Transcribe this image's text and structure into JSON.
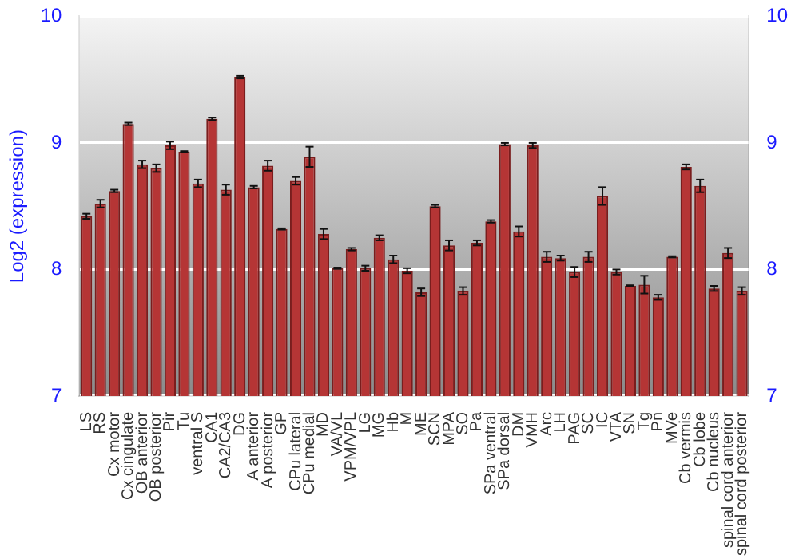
{
  "chart_data": {
    "type": "bar",
    "ylabel": "Log2 (expression)",
    "categories": [
      "LS",
      "RS",
      "Cx motor",
      "Cx cingulate",
      "OB anterior",
      "OB posterior",
      "Pir",
      "Tu",
      "ventral S",
      "CA1",
      "CA2/CA3",
      "DG",
      "A anterior",
      "A posterior",
      "GP",
      "CPu lateral",
      "CPu medial",
      "MD",
      "VA/VL",
      "VPM/VPL",
      "LG",
      "MG",
      "Hb",
      "M",
      "ME",
      "SCN",
      "MPA",
      "SO",
      "Pa",
      "SPa ventral",
      "SPa dorsal",
      "DM",
      "VMH",
      "Arc",
      "LH",
      "PAG",
      "SC",
      "IC",
      "VTA",
      "SN",
      "Tg",
      "Pn",
      "MVe",
      "Cb vermis",
      "Cb lobe",
      "Cb nucleus",
      "spinal cord anterior",
      "spinal cord posterior"
    ],
    "values": [
      8.42,
      8.52,
      8.62,
      9.15,
      8.83,
      8.8,
      8.98,
      8.93,
      8.68,
      9.19,
      8.63,
      9.52,
      8.65,
      8.82,
      8.32,
      8.7,
      8.89,
      8.28,
      8.01,
      8.16,
      8.01,
      8.25,
      8.08,
      7.99,
      7.82,
      8.5,
      8.19,
      7.83,
      8.21,
      8.38,
      8.99,
      8.3,
      8.98,
      8.1,
      8.09,
      7.98,
      8.1,
      8.58,
      7.98,
      7.87,
      7.88,
      7.78,
      8.1,
      8.81,
      8.66,
      7.85,
      8.13,
      7.83
    ],
    "errors": [
      0.02,
      0.03,
      0.01,
      0.01,
      0.03,
      0.03,
      0.03,
      0.005,
      0.03,
      0.01,
      0.04,
      0.01,
      0.01,
      0.04,
      0.005,
      0.03,
      0.08,
      0.04,
      0.005,
      0.01,
      0.02,
      0.02,
      0.03,
      0.02,
      0.03,
      0.01,
      0.04,
      0.03,
      0.02,
      0.01,
      0.01,
      0.04,
      0.02,
      0.04,
      0.02,
      0.04,
      0.04,
      0.07,
      0.02,
      0.005,
      0.07,
      0.02,
      0.005,
      0.02,
      0.05,
      0.02,
      0.04,
      0.03
    ],
    "color": "#b53535",
    "ylim": [
      7,
      10
    ],
    "yticks": [
      7,
      8,
      9,
      10
    ],
    "y2lim": [
      7,
      10
    ],
    "y2ticks": [
      7,
      8,
      9,
      10
    ],
    "grid": "y"
  }
}
